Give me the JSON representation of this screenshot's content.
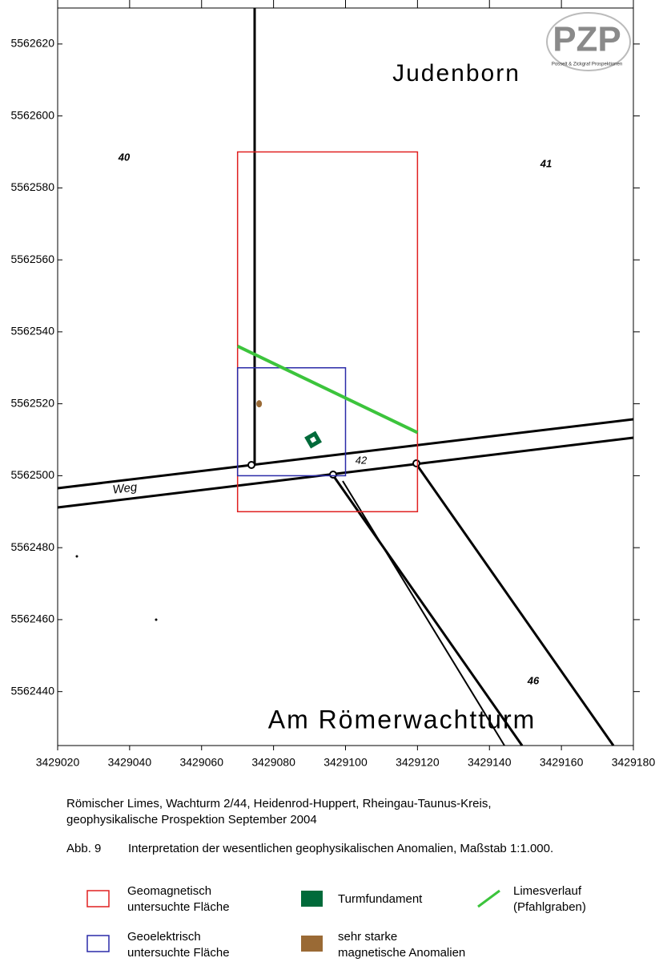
{
  "logo": {
    "letters": "PZP",
    "subtitle": "Posselt & Zickgraf Prospektionen"
  },
  "map": {
    "xlim": [
      3429020,
      3429180
    ],
    "ylim": [
      5562425,
      5562630
    ],
    "xticks": [
      3429020,
      3429040,
      3429060,
      3429080,
      3429100,
      3429120,
      3429140,
      3429160,
      3429180
    ],
    "yticks": [
      5562440,
      5562460,
      5562480,
      5562500,
      5562520,
      5562540,
      5562560,
      5562580,
      5562600,
      5562620
    ],
    "place_names": [
      "Judenborn",
      "Am Römerwachtturm"
    ],
    "labels": [
      "Weg",
      "40",
      "41",
      "42",
      "46"
    ],
    "geomagnetic_area": {
      "x": [
        3429070,
        3429120
      ],
      "y": [
        5562490,
        5562590
      ],
      "color": "#e02020"
    },
    "geoelectric_area": {
      "x": [
        3429070,
        3429100
      ],
      "y": [
        5562500,
        5562530
      ],
      "color": "#2a2aa8"
    },
    "limes_line": {
      "x": [
        3429070,
        3429120
      ],
      "y": [
        5562536,
        5562512
      ],
      "color": "#3cc43c"
    },
    "tower": {
      "x": 3429091,
      "y": 5562510,
      "color": "#006a3a"
    },
    "anomaly": {
      "x": 3429076,
      "y": 5562520,
      "color": "#9a6a35"
    }
  },
  "caption": [
    "Römischer Limes, Wachturm 2/44, Heidenrod-Huppert, Rheingau-Taunus-Kreis,",
    "geophysikalische Prospektion September 2004"
  ],
  "figure": {
    "number": "Abb. 9",
    "text": "Interpretation der wesentlichen geophysikalischen Anomalien, Maßstab 1:1.000."
  },
  "legend": [
    {
      "lines": [
        "Geomagnetisch",
        "untersuchte Fläche"
      ]
    },
    {
      "lines": [
        "Turmfundament"
      ]
    },
    {
      "lines": [
        "Limesverlauf",
        "(Pfahlgraben)"
      ]
    },
    {
      "lines": [
        "Geoelektrisch",
        "untersuchte Fläche"
      ]
    },
    {
      "lines": [
        "sehr starke",
        "magnetische Anomalien"
      ]
    }
  ]
}
